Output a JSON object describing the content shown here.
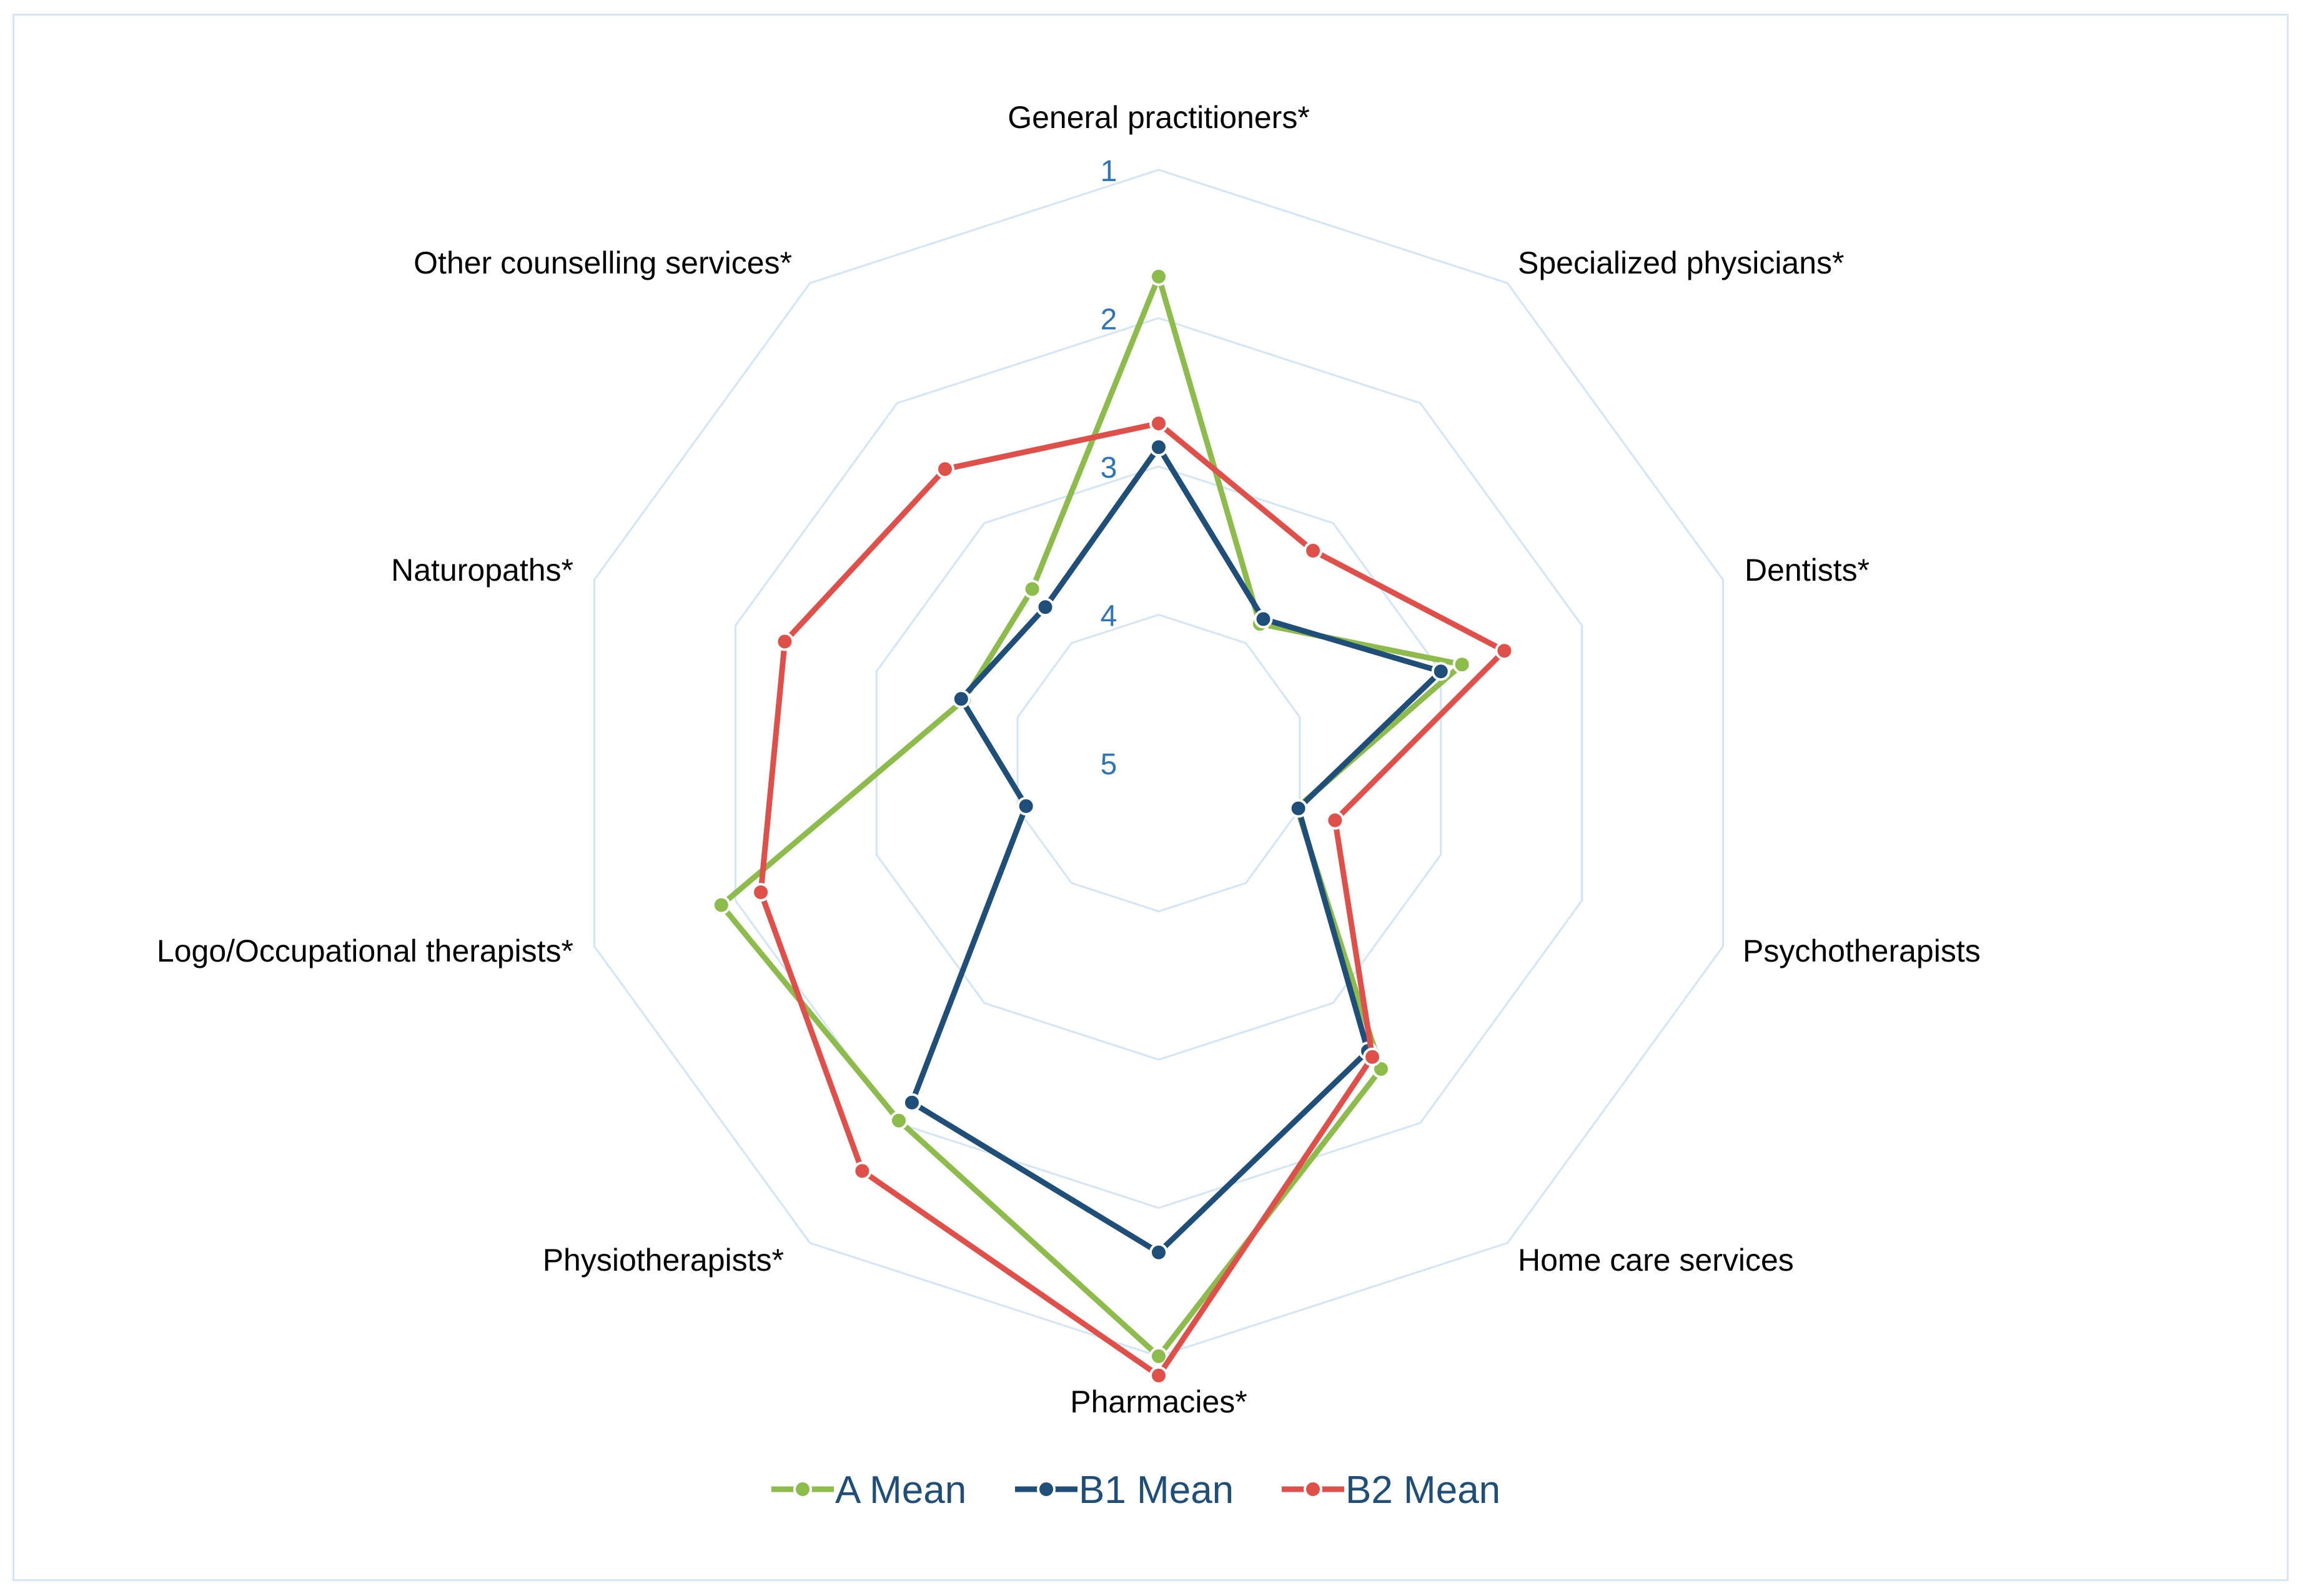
{
  "chart_data": {
    "type": "radar",
    "categories": [
      "General practitioners*",
      "Specialized physicians*",
      "Dentists*",
      "Psychotherapists",
      "Home care services",
      "Pharmacies*",
      "Physiotherapists*",
      "Logo/Occupational therapists*",
      "Naturopaths*",
      "Other counselling services*"
    ],
    "scale": {
      "min": 1,
      "max": 5,
      "reversed": true,
      "ticks": [
        "1",
        "2",
        "3",
        "4",
        "5"
      ]
    },
    "grid": true,
    "legend_position": "bottom",
    "series": [
      {
        "name": "A Mean",
        "color": "#8dbb4c",
        "values": [
          1.72,
          3.84,
          2.85,
          4.02,
          2.45,
          1.0,
          2.02,
          1.9,
          3.62,
          3.55
        ]
      },
      {
        "name": "B1 Mean",
        "color": "#1f4e79",
        "values": [
          2.87,
          3.8,
          3.0,
          4.01,
          2.6,
          1.7,
          2.17,
          4.06,
          3.6,
          3.7
        ]
      },
      {
        "name": "B2 Mean",
        "color": "#e0504a",
        "values": [
          2.71,
          3.23,
          2.55,
          3.75,
          2.55,
          0.87,
          1.6,
          2.18,
          2.35,
          2.55
        ]
      }
    ]
  }
}
